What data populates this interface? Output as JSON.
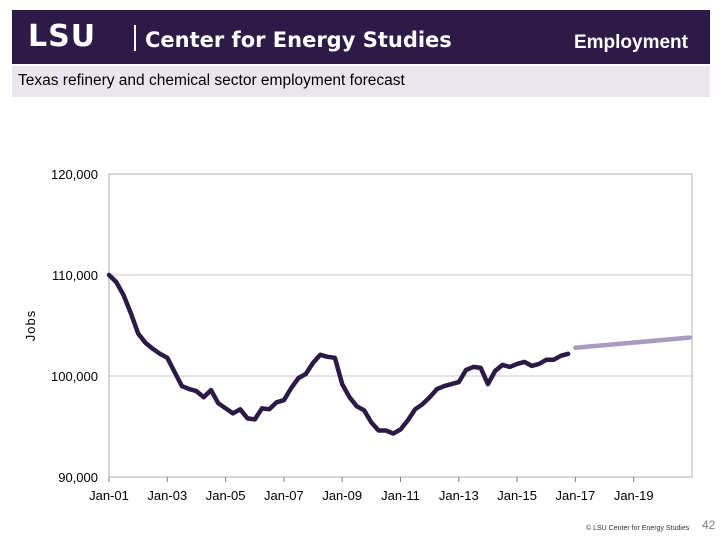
{
  "header": {
    "logo_text": "LSU",
    "center_name": "Center for Energy Studies",
    "section_title": "Employment"
  },
  "subtitle": "Texas refinery and chemical sector employment forecast",
  "footer": {
    "copyright": "© LSU Center for Energy Studies",
    "page_number": "42"
  },
  "colors": {
    "header_bg": "#2e1a47",
    "subtitle_bg": "#ebe6ee",
    "actual_line": "#2b1a45",
    "forecast_line": "#a89bbf"
  },
  "chart_data": {
    "type": "line",
    "ylabel": "Jobs",
    "ylim": [
      90000,
      120000
    ],
    "xlim": [
      "2001-01",
      "2020-12"
    ],
    "y_ticks": [
      90000,
      100000,
      110000,
      120000
    ],
    "y_tick_labels": [
      "90,000",
      "100,000",
      "110,000",
      "120,000"
    ],
    "x_ticks": [
      "2001-01",
      "2003-01",
      "2005-01",
      "2007-01",
      "2009-01",
      "2011-01",
      "2013-01",
      "2015-01",
      "2017-01",
      "2019-01"
    ],
    "x_tick_labels": [
      "Jan-01",
      "Jan-03",
      "Jan-05",
      "Jan-07",
      "Jan-09",
      "Jan-11",
      "Jan-13",
      "Jan-15",
      "Jan-17",
      "Jan-19"
    ],
    "grid": true,
    "legend": "none",
    "series": [
      {
        "x": [
          "2001-01",
          "2001-04",
          "2001-07",
          "2001-10",
          "2002-01",
          "2002-04",
          "2002-07",
          "2002-10",
          "2003-01",
          "2003-04",
          "2003-07",
          "2003-10",
          "2004-01",
          "2004-04",
          "2004-07",
          "2004-10",
          "2005-01",
          "2005-04",
          "2005-07",
          "2005-10",
          "2006-01",
          "2006-04",
          "2006-07",
          "2006-10",
          "2007-01",
          "2007-04",
          "2007-07",
          "2007-10",
          "2008-01",
          "2008-04",
          "2008-07",
          "2008-10",
          "2009-01",
          "2009-04",
          "2009-07",
          "2009-10",
          "2010-01",
          "2010-04",
          "2010-07",
          "2010-10",
          "2011-01",
          "2011-04",
          "2011-07",
          "2011-10",
          "2012-01",
          "2012-04",
          "2012-07",
          "2012-10",
          "2013-01",
          "2013-04",
          "2013-07",
          "2013-10",
          "2014-01",
          "2014-04",
          "2014-07",
          "2014-10",
          "2015-01",
          "2015-04",
          "2015-07",
          "2015-10",
          "2016-01",
          "2016-04",
          "2016-07",
          "2016-10"
        ],
        "y": [
          110000,
          109300,
          108000,
          106200,
          104200,
          103300,
          102700,
          102200,
          101800,
          100400,
          99000,
          98700,
          98500,
          97900,
          98600,
          97300,
          96800,
          96300,
          96700,
          95800,
          95700,
          96800,
          96700,
          97400,
          97600,
          98800,
          99800,
          100200,
          101300,
          102100,
          101900,
          101800,
          99200,
          97900,
          97000,
          96600,
          95400,
          94600,
          94600,
          94300,
          94700,
          95600,
          96700,
          97200,
          97900,
          98700,
          99000,
          99200,
          99400,
          100600,
          100900,
          100800,
          99200,
          100500,
          101100,
          100900,
          101200,
          101400,
          101000,
          101200,
          101600,
          101600,
          102000,
          102200
        ]
      },
      {
        "x": [
          "2017-01",
          "2020-12"
        ],
        "y": [
          102800,
          103800
        ]
      }
    ]
  }
}
